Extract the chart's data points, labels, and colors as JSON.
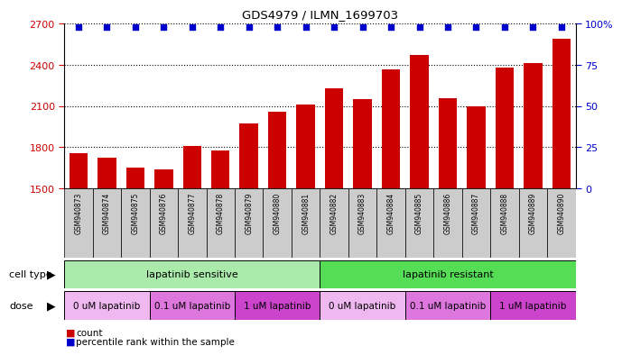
{
  "title": "GDS4979 / ILMN_1699703",
  "samples": [
    "GSM940873",
    "GSM940874",
    "GSM940875",
    "GSM940876",
    "GSM940877",
    "GSM940878",
    "GSM940879",
    "GSM940880",
    "GSM940881",
    "GSM940882",
    "GSM940883",
    "GSM940884",
    "GSM940885",
    "GSM940886",
    "GSM940887",
    "GSM940888",
    "GSM940889",
    "GSM940890"
  ],
  "counts": [
    1755,
    1720,
    1650,
    1635,
    1810,
    1775,
    1970,
    2060,
    2110,
    2230,
    2150,
    2370,
    2470,
    2155,
    2100,
    2380,
    2415,
    2590
  ],
  "percentile_ranks": [
    98,
    98,
    98,
    98,
    98,
    98,
    98,
    98,
    98,
    98,
    98,
    98,
    98,
    98,
    98,
    98,
    98,
    98
  ],
  "bar_color": "#cc0000",
  "dot_color": "#0000cc",
  "ylim_left": [
    1500,
    2700
  ],
  "ylim_right": [
    0,
    100
  ],
  "yticks_left": [
    1500,
    1800,
    2100,
    2400,
    2700
  ],
  "yticks_right": [
    0,
    25,
    50,
    75,
    100
  ],
  "cell_type_groups": [
    {
      "label": "lapatinib sensitive",
      "start": 0,
      "end": 9,
      "color": "#aaeaaa"
    },
    {
      "label": "lapatinib resistant",
      "start": 9,
      "end": 18,
      "color": "#55dd55"
    }
  ],
  "dose_groups": [
    {
      "label": "0 uM lapatinib",
      "start": 0,
      "end": 3,
      "color": "#f0b8f0"
    },
    {
      "label": "0.1 uM lapatinib",
      "start": 3,
      "end": 6,
      "color": "#dd77dd"
    },
    {
      "label": "1 uM lapatinib",
      "start": 6,
      "end": 9,
      "color": "#cc44cc"
    },
    {
      "label": "0 uM lapatinib",
      "start": 9,
      "end": 12,
      "color": "#f0b8f0"
    },
    {
      "label": "0.1 uM lapatinib",
      "start": 12,
      "end": 15,
      "color": "#dd77dd"
    },
    {
      "label": "1 uM lapatinib",
      "start": 15,
      "end": 18,
      "color": "#cc44cc"
    }
  ],
  "legend_count_label": "count",
  "legend_pct_label": "percentile rank within the sample",
  "cell_type_label": "cell type",
  "dose_label": "dose",
  "background_color": "#ffffff",
  "plot_bg_color": "#ffffff",
  "tick_area_color": "#cccccc",
  "border_color": "#000000"
}
